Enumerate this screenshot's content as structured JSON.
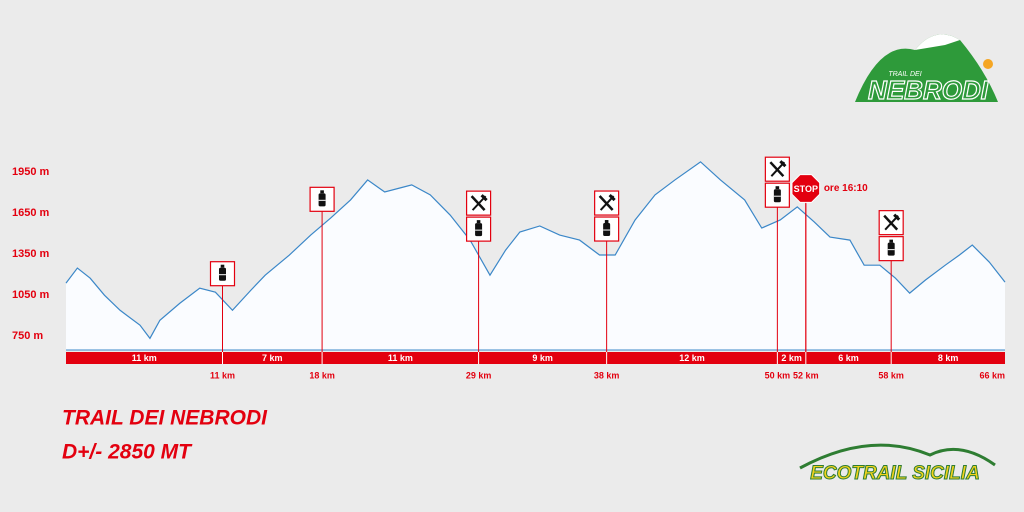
{
  "chart_data": {
    "type": "area",
    "title": "TRAIL DEI NEBRODI",
    "subtitle": "D+/- 2850 MT",
    "x": [
      0,
      0.8,
      1.7,
      2.7,
      3.8,
      5.2,
      5.9,
      6.6,
      8.0,
      9.4,
      10.5,
      11.7,
      13.0,
      14.0,
      15.7,
      17.2,
      18.6,
      20.0,
      21.2,
      22.4,
      23.5,
      24.3,
      25.6,
      27.0,
      28.4,
      29.8,
      30.9,
      31.9,
      33.3,
      34.7,
      36.1,
      37.5,
      38.6,
      40.0,
      41.4,
      42.8,
      44.6,
      46.0,
      47.7,
      48.9,
      50.2,
      51.4,
      52.6,
      53.7,
      55.1,
      56.1,
      57.2,
      58.3,
      59.3,
      60.4,
      61.8,
      62.8,
      63.7,
      64.9,
      66.0
    ],
    "values": [
      1138,
      1248,
      1174,
      1050,
      940,
      831,
      735,
      867,
      991,
      1101,
      1072,
      940,
      1087,
      1196,
      1343,
      1489,
      1613,
      1745,
      1891,
      1803,
      1833,
      1855,
      1782,
      1635,
      1452,
      1196,
      1379,
      1511,
      1555,
      1489,
      1452,
      1343,
      1343,
      1599,
      1782,
      1891,
      2023,
      1891,
      1745,
      1540,
      1599,
      1694,
      1584,
      1474,
      1452,
      1269,
      1269,
      1174,
      1065,
      1160,
      1269,
      1343,
      1416,
      1291,
      1145
    ],
    "color": "#3b87c8",
    "xlim": [
      0,
      66
    ],
    "ylim": [
      650,
      2000
    ],
    "yticks": [
      {
        "value": 750,
        "label": "750 m"
      },
      {
        "value": 1050,
        "label": "1050 m"
      },
      {
        "value": 1350,
        "label": "1350 m"
      },
      {
        "value": 1650,
        "label": "1650 m"
      },
      {
        "value": 1950,
        "label": "1950 m"
      }
    ],
    "stations": [
      {
        "km": 11,
        "label": "11 km",
        "segment": "11 km",
        "services": [
          "water"
        ]
      },
      {
        "km": 18,
        "label": "18 km",
        "segment": "7 km",
        "services": [
          "water"
        ]
      },
      {
        "km": 29,
        "label": "29 km",
        "segment": "11 km",
        "services": [
          "food",
          "water"
        ]
      },
      {
        "km": 38,
        "label": "38 km",
        "segment": "9 km",
        "services": [
          "food",
          "water"
        ]
      },
      {
        "km": 50,
        "label": "50 km",
        "segment": "12 km",
        "services": [
          "food",
          "water"
        ]
      },
      {
        "km": 52,
        "label": "52 km",
        "segment": "2 km",
        "stop": "STOP",
        "note": "ore 16:10"
      },
      {
        "km": 58,
        "label": "58 km",
        "segment": "6 km",
        "services": [
          "food",
          "water"
        ]
      },
      {
        "km": 66,
        "label": "66 km",
        "segment": "8 km"
      }
    ]
  },
  "logos": {
    "top_small": "TRAIL DEI",
    "top": "NEBRODI",
    "bottom": "ECOTRAIL SICILIA"
  }
}
